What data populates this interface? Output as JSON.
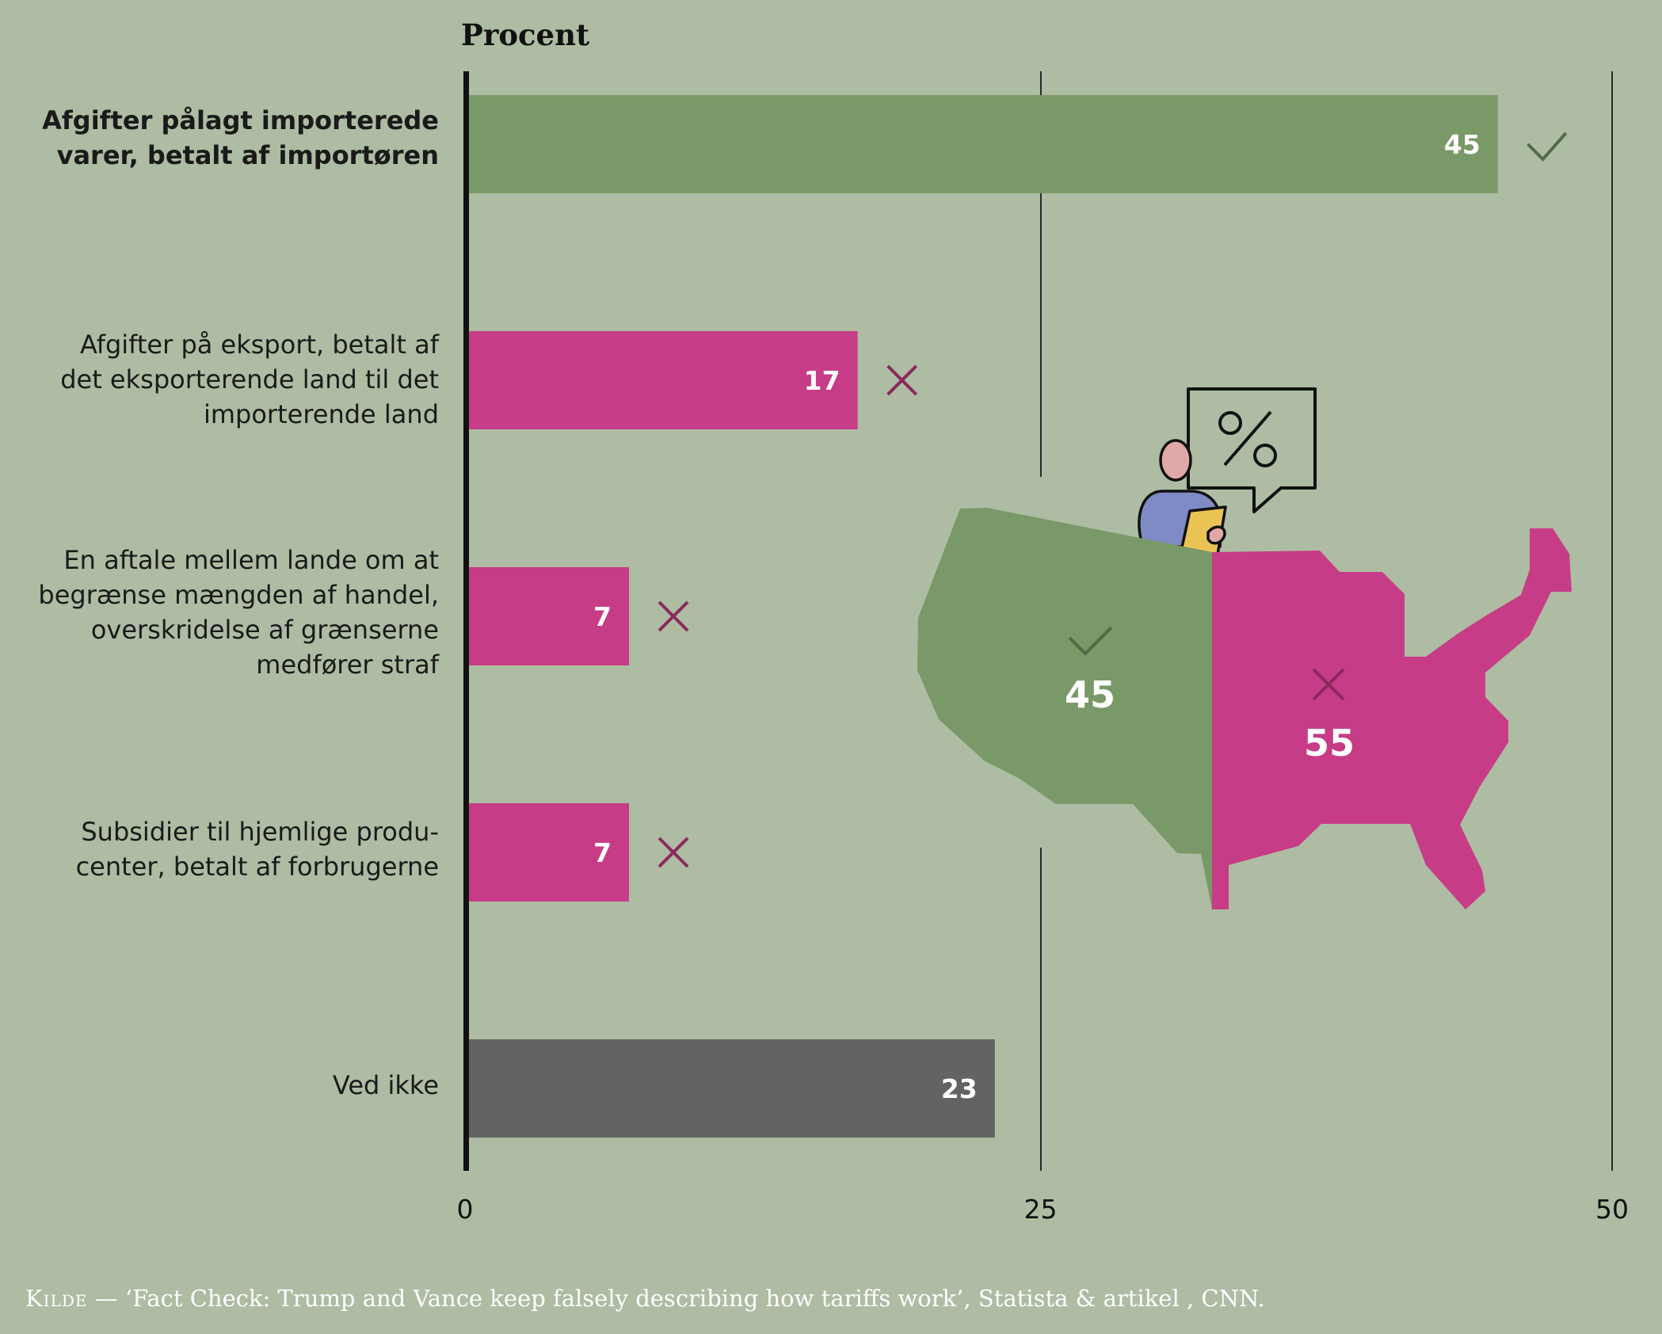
{
  "title": "Procent",
  "colors": {
    "background": "#adbca3",
    "correct": "#7a9968",
    "wrong": "#c73c86",
    "unknown": "#636363",
    "axis": "#111111",
    "grid": "#2a2a2a",
    "check_mark": "#536b47",
    "cross_mark": "#8a2a5c"
  },
  "chart_data": [
    {
      "type": "bar",
      "orientation": "horizontal",
      "xlabel": "",
      "ylabel": "Procent",
      "xlim": [
        0,
        50
      ],
      "xticks": [
        0,
        25,
        50
      ],
      "xtick_labels": [
        "0",
        "25",
        "50"
      ],
      "grid": true,
      "categories": [
        "Afgifter pålagt importerede varer, betalt af importøren",
        "Afgifter på eksport, betalt af det eksporterende land til det importerende land",
        "En aftale mellem lande om at begrænse mængden af handel, overskridelse af grænserne medfører straf",
        "Subsidier til hjemlige producenter, betalt af forbrugerne",
        "Ved ikke"
      ],
      "values": [
        45,
        17,
        7,
        7,
        23
      ],
      "value_labels": [
        "45",
        "17",
        "7",
        "7",
        "23"
      ],
      "markers": [
        "check",
        "cross",
        "cross",
        "cross",
        "none"
      ],
      "bar_colors": [
        "correct",
        "wrong",
        "wrong",
        "wrong",
        "unknown"
      ]
    },
    {
      "type": "pie",
      "shape": "USA map split",
      "slices": [
        {
          "value": 45,
          "label": "45",
          "marker": "check",
          "color": "correct"
        },
        {
          "value": 55,
          "label": "55",
          "marker": "cross",
          "color": "wrong"
        }
      ]
    }
  ],
  "labels": [
    {
      "lines": [
        "Afgifter pålagt importerede",
        "varer, betalt af importøren"
      ],
      "bold": true
    },
    {
      "lines": [
        "Afgifter på eksport, betalt af",
        "det eksporterende land til det",
        "importerende land"
      ],
      "bold": false
    },
    {
      "lines": [
        "En aftale mellem lande om at",
        "begrænse mængden af handel,",
        "overskridelse af grænserne",
        "medfører straf"
      ],
      "bold": false
    },
    {
      "lines": [
        "Subsidier til hjemlige produ-",
        "center, betalt af forbrugerne"
      ],
      "bold": false
    },
    {
      "lines": [
        "Ved ikke"
      ],
      "bold": false
    }
  ],
  "icons": [
    "check-icon",
    "cross-icon",
    "percent-icon",
    "person-icon",
    "speech-bubble-icon",
    "usa-map-icon"
  ],
  "illustration": {
    "bubble_text": "%"
  },
  "source": {
    "keyword": "Kilde",
    "dash": "—",
    "quoted_title": "‘Fact Check: Trump and Vance keep falsely describing how tariffs work’",
    "rest": ", Statista & artikel , CNN."
  }
}
